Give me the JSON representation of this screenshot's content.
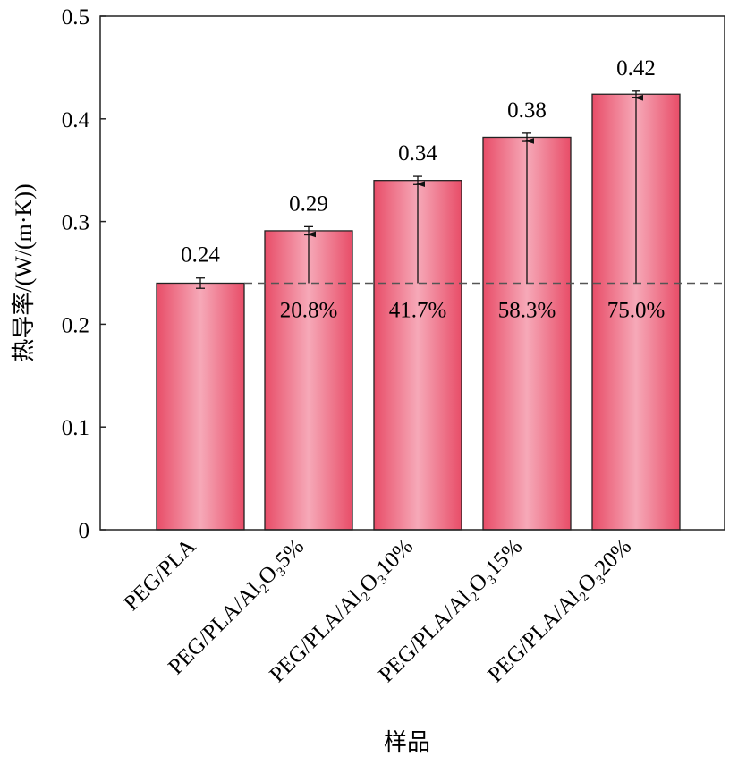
{
  "chart_data": {
    "type": "bar",
    "title": "",
    "xlabel": "样品",
    "ylabel": "热导率/(W/(m·K))",
    "ylim": [
      0,
      0.5
    ],
    "yticks": [
      0,
      0.1,
      0.2,
      0.3,
      0.4,
      0.5
    ],
    "ytick_labels": [
      "0",
      "0.1",
      "0.2",
      "0.3",
      "0.4",
      "0.5"
    ],
    "categories": [
      "PEG/PLA",
      "PEG/PLA/Al₂O₃5%",
      "PEG/PLA/Al₂O₃10%",
      "PEG/PLA/Al₂O₃15%",
      "PEG/PLA/Al₂O₃20%"
    ],
    "values": [
      0.24,
      0.291,
      0.34,
      0.382,
      0.424
    ],
    "errors": [
      0.005,
      0.004,
      0.004,
      0.004,
      0.003
    ],
    "value_labels": [
      "0.24",
      "0.29",
      "0.34",
      "0.38",
      "0.42"
    ],
    "baseline": 0.24,
    "increase_labels": [
      "",
      "20.8%",
      "41.7%",
      "58.3%",
      "75.0%"
    ],
    "grid": false,
    "colors": {
      "bar_edge": "#e84d68",
      "bar_center": "#f6a9b8",
      "outline": "#222222"
    }
  }
}
